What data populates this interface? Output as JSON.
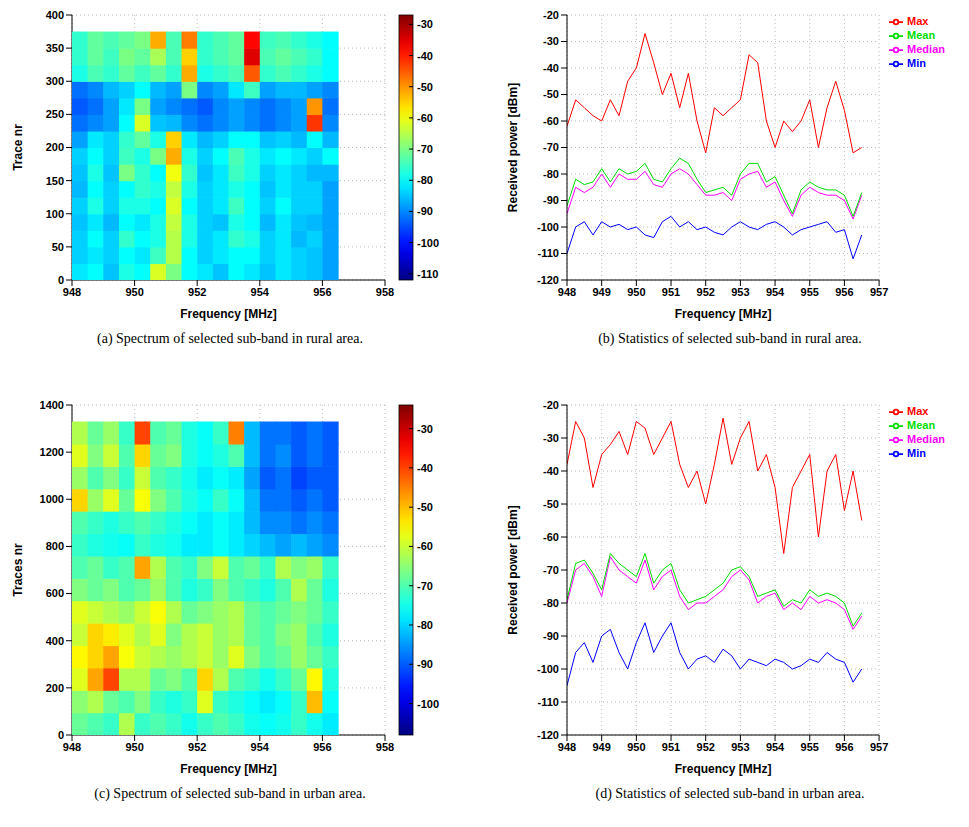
{
  "chart_data": [
    {
      "type": "heatmap",
      "caption": "(a) Spectrum of selected sub-band in rural area.",
      "x_label": "Frequency [MHz]",
      "y_label": "Trace nr",
      "xlim": [
        948,
        958
      ],
      "xticks": [
        948,
        950,
        952,
        954,
        956,
        958
      ],
      "ylim": [
        0,
        400
      ],
      "yticks": [
        0,
        50,
        100,
        150,
        200,
        250,
        300,
        350,
        400
      ],
      "grid": true,
      "x_bins": [
        948,
        948.5,
        949,
        949.5,
        950,
        950.5,
        951,
        951.5,
        952,
        952.5,
        953,
        953.5,
        954,
        954.5,
        955,
        955.5,
        956,
        956.5
      ],
      "y_bins": [
        0,
        25,
        50,
        75,
        100,
        125,
        150,
        175,
        200,
        225,
        250,
        275,
        300,
        325,
        350,
        375
      ],
      "cells": [
        [
          -82,
          -80,
          -85,
          -78,
          -80,
          -62,
          -70,
          -80,
          -82,
          -85,
          -80,
          -82,
          -85,
          -82,
          -84,
          -85,
          -88
        ],
        [
          -84,
          -82,
          -84,
          -80,
          -82,
          -75,
          -65,
          -80,
          -84,
          -82,
          -80,
          -80,
          -84,
          -82,
          -84,
          -85,
          -88
        ],
        [
          -84,
          -80,
          -84,
          -76,
          -80,
          -78,
          -65,
          -78,
          -84,
          -82,
          -76,
          -78,
          -84,
          -82,
          -86,
          -84,
          -88
        ],
        [
          -85,
          -82,
          -86,
          -80,
          -82,
          -78,
          -64,
          -78,
          -84,
          -85,
          -78,
          -80,
          -86,
          -82,
          -85,
          -86,
          -88
        ],
        [
          -84,
          -78,
          -84,
          -78,
          -78,
          -80,
          -62,
          -80,
          -84,
          -82,
          -75,
          -80,
          -84,
          -80,
          -84,
          -84,
          -88
        ],
        [
          -86,
          -80,
          -84,
          -80,
          -76,
          -78,
          -64,
          -78,
          -84,
          -82,
          -78,
          -80,
          -85,
          -82,
          -84,
          -84,
          -88
        ],
        [
          -85,
          -78,
          -85,
          -70,
          -76,
          -80,
          -60,
          -76,
          -85,
          -82,
          -75,
          -78,
          -84,
          -82,
          -84,
          -86,
          -86
        ],
        [
          -84,
          -80,
          -84,
          -75,
          -78,
          -70,
          -52,
          -78,
          -84,
          -80,
          -74,
          -78,
          -82,
          -80,
          -82,
          -84,
          -80
        ],
        [
          -88,
          -82,
          -84,
          -76,
          -72,
          -78,
          -55,
          -82,
          -86,
          -84,
          -80,
          -80,
          -85,
          -84,
          -86,
          -80,
          -86
        ],
        [
          -92,
          -90,
          -88,
          -80,
          -62,
          -85,
          -86,
          -90,
          -92,
          -90,
          -88,
          -90,
          -92,
          -90,
          -88,
          -42,
          -90
        ],
        [
          -94,
          -92,
          -88,
          -82,
          -70,
          -88,
          -90,
          -92,
          -94,
          -90,
          -88,
          -90,
          -92,
          -90,
          -88,
          -50,
          -92
        ],
        [
          -92,
          -90,
          -86,
          -84,
          -80,
          -86,
          -88,
          -70,
          -90,
          -88,
          -82,
          -75,
          -88,
          -86,
          -86,
          -88,
          -90
        ],
        [
          -78,
          -74,
          -76,
          -72,
          -75,
          -72,
          -76,
          -52,
          -78,
          -76,
          -74,
          -45,
          -76,
          -74,
          -76,
          -78,
          -80
        ],
        [
          -76,
          -72,
          -75,
          -70,
          -72,
          -66,
          -74,
          -55,
          -76,
          -74,
          -72,
          -35,
          -74,
          -72,
          -74,
          -76,
          -80
        ],
        [
          -76,
          -72,
          -74,
          -72,
          -70,
          -52,
          -74,
          -48,
          -76,
          -74,
          -72,
          -38,
          -75,
          -74,
          -76,
          -78,
          -80
        ]
      ],
      "colorbar_lim": [
        -112,
        -27
      ],
      "colorbar_ticks": [
        -110,
        -100,
        -90,
        -80,
        -70,
        -60,
        -50,
        -40,
        -30
      ]
    },
    {
      "type": "line",
      "caption": "(b) Statistics of selected sub-band in rural area.",
      "x_label": "Frequency [MHz]",
      "y_label": "Received power [dBm]",
      "x": [
        948,
        948.25,
        948.5,
        948.75,
        949,
        949.25,
        949.5,
        949.75,
        950,
        950.25,
        950.5,
        950.75,
        951,
        951.25,
        951.5,
        951.75,
        952,
        952.25,
        952.5,
        952.75,
        953,
        953.25,
        953.5,
        953.75,
        954,
        954.25,
        954.5,
        954.75,
        955,
        955.25,
        955.5,
        955.75,
        956,
        956.25,
        956.5
      ],
      "series": [
        {
          "name": "Median",
          "color": "#ff00ff",
          "values": [
            -95,
            -85,
            -87,
            -85,
            -80,
            -85,
            -80,
            -82,
            -82,
            -79,
            -84,
            -85,
            -80,
            -78,
            -80,
            -84,
            -88,
            -88,
            -87,
            -90,
            -82,
            -80,
            -79,
            -85,
            -83,
            -90,
            -96,
            -88,
            -85,
            -87,
            -88,
            -88,
            -90,
            -97,
            -88
          ]
        },
        {
          "name": "Max",
          "color": "#ff0000",
          "values": [
            -62,
            -52,
            -55,
            -58,
            -60,
            -52,
            -58,
            -45,
            -40,
            -27,
            -38,
            -50,
            -42,
            -55,
            -42,
            -60,
            -72,
            -55,
            -58,
            -55,
            -52,
            -35,
            -38,
            -60,
            -70,
            -60,
            -64,
            -60,
            -52,
            -70,
            -55,
            -45,
            -56,
            -72,
            -70
          ]
        },
        {
          "name": "Min",
          "color": "#0000ff",
          "values": [
            -110,
            -100,
            -98,
            -103,
            -98,
            -100,
            -99,
            -101,
            -100,
            -103,
            -104,
            -98,
            -96,
            -100,
            -98,
            -101,
            -100,
            -102,
            -103,
            -100,
            -98,
            -100,
            -101,
            -99,
            -98,
            -100,
            -103,
            -101,
            -100,
            -99,
            -98,
            -102,
            -101,
            -112,
            -103
          ]
        },
        {
          "name": "Mean",
          "color": "#00dd00",
          "values": [
            -92,
            -82,
            -84,
            -83,
            -78,
            -83,
            -78,
            -80,
            -79,
            -76,
            -82,
            -83,
            -78,
            -74,
            -76,
            -82,
            -87,
            -86,
            -85,
            -88,
            -80,
            -76,
            -76,
            -83,
            -81,
            -88,
            -95,
            -86,
            -83,
            -85,
            -86,
            -86,
            -88,
            -96,
            -87
          ]
        }
      ],
      "xlim": [
        948,
        957
      ],
      "xticks": [
        948,
        949,
        950,
        951,
        952,
        953,
        954,
        955,
        956,
        957
      ],
      "ylim": [
        -120,
        -20
      ],
      "yticks": [
        -120,
        -110,
        -100,
        -90,
        -80,
        -70,
        -60,
        -50,
        -40,
        -30,
        -20
      ],
      "grid": true,
      "legend": "right"
    },
    {
      "type": "heatmap",
      "caption": "(c) Spectrum of selected sub-band in urban area.",
      "x_label": "Frequency [MHz]",
      "y_label": "Traces nr",
      "xlim": [
        948,
        958
      ],
      "xticks": [
        948,
        950,
        952,
        954,
        956,
        958
      ],
      "ylim": [
        0,
        1400
      ],
      "yticks": [
        0,
        200,
        400,
        600,
        800,
        1000,
        1200,
        1400
      ],
      "grid": true,
      "x_bins": [
        948,
        948.5,
        949,
        949.5,
        950,
        950.5,
        951,
        951.5,
        952,
        952.5,
        953,
        953.5,
        954,
        954.5,
        955,
        955.5,
        956,
        956.5
      ],
      "y_bins": [
        0,
        95,
        190,
        285,
        380,
        475,
        570,
        665,
        760,
        855,
        950,
        1045,
        1140,
        1235,
        1330
      ],
      "cells": [
        [
          -68,
          -70,
          -72,
          -62,
          -72,
          -70,
          -72,
          -75,
          -72,
          -70,
          -72,
          -75,
          -76,
          -75,
          -72,
          -75,
          -78
        ],
        [
          -65,
          -62,
          -68,
          -70,
          -66,
          -72,
          -74,
          -72,
          -58,
          -72,
          -74,
          -76,
          -78,
          -76,
          -72,
          -50,
          -76
        ],
        [
          -58,
          -48,
          -40,
          -62,
          -62,
          -68,
          -66,
          -70,
          -52,
          -62,
          -70,
          -72,
          -75,
          -72,
          -68,
          -55,
          -74
        ],
        [
          -55,
          -52,
          -48,
          -56,
          -60,
          -62,
          -64,
          -62,
          -60,
          -64,
          -58,
          -66,
          -70,
          -68,
          -64,
          -68,
          -72
        ],
        [
          -60,
          -52,
          -54,
          -58,
          -62,
          -58,
          -66,
          -62,
          -60,
          -64,
          -62,
          -68,
          -70,
          -66,
          -64,
          -70,
          -74
        ],
        [
          -58,
          -60,
          -62,
          -64,
          -60,
          -56,
          -62,
          -68,
          -66,
          -64,
          -62,
          -68,
          -70,
          -68,
          -66,
          -68,
          -72
        ],
        [
          -66,
          -68,
          -66,
          -70,
          -68,
          -64,
          -70,
          -74,
          -72,
          -66,
          -70,
          -72,
          -74,
          -70,
          -62,
          -68,
          -74
        ],
        [
          -70,
          -68,
          -72,
          -70,
          -48,
          -62,
          -70,
          -72,
          -66,
          -60,
          -70,
          -68,
          -72,
          -62,
          -66,
          -64,
          -72
        ],
        [
          -72,
          -74,
          -75,
          -76,
          -72,
          -74,
          -75,
          -78,
          -78,
          -76,
          -78,
          -80,
          -82,
          -84,
          -82,
          -84,
          -86
        ],
        [
          -70,
          -72,
          -74,
          -72,
          -70,
          -72,
          -74,
          -76,
          -78,
          -76,
          -78,
          -82,
          -86,
          -86,
          -88,
          -86,
          -88
        ],
        [
          -52,
          -64,
          -58,
          -68,
          -56,
          -66,
          -70,
          -74,
          -76,
          -72,
          -76,
          -82,
          -88,
          -88,
          -90,
          -88,
          -90
        ],
        [
          -64,
          -70,
          -66,
          -72,
          -60,
          -70,
          -72,
          -75,
          -78,
          -76,
          -78,
          -84,
          -90,
          -88,
          -92,
          -90,
          -90
        ],
        [
          -58,
          -66,
          -60,
          -70,
          -52,
          -68,
          -66,
          -74,
          -76,
          -74,
          -70,
          -82,
          -88,
          -86,
          -90,
          -88,
          -90
        ],
        [
          -62,
          -68,
          -64,
          -72,
          -40,
          -70,
          -68,
          -74,
          -76,
          -72,
          -45,
          -82,
          -88,
          -88,
          -90,
          -88,
          -90
        ]
      ],
      "colorbar_lim": [
        -108,
        -24
      ],
      "colorbar_ticks": [
        -100,
        -90,
        -80,
        -70,
        -60,
        -50,
        -40,
        -30
      ]
    },
    {
      "type": "line",
      "caption": "(d) Statistics of selected sub-band in urban area.",
      "x_label": "Frequency [MHz]",
      "y_label": "Received power [dBm]",
      "x": [
        948,
        948.25,
        948.5,
        948.75,
        949,
        949.25,
        949.5,
        949.75,
        950,
        950.25,
        950.5,
        950.75,
        951,
        951.25,
        951.5,
        951.75,
        952,
        952.25,
        952.5,
        952.75,
        953,
        953.25,
        953.5,
        953.75,
        954,
        954.25,
        954.5,
        954.75,
        955,
        955.25,
        955.5,
        955.75,
        956,
        956.25,
        956.5
      ],
      "series": [
        {
          "name": "Median",
          "color": "#ff00ff",
          "values": [
            -80,
            -70,
            -68,
            -72,
            -78,
            -66,
            -70,
            -72,
            -74,
            -67,
            -76,
            -72,
            -70,
            -78,
            -82,
            -80,
            -80,
            -78,
            -76,
            -72,
            -70,
            -73,
            -80,
            -78,
            -77,
            -82,
            -80,
            -82,
            -78,
            -80,
            -79,
            -80,
            -82,
            -88,
            -84
          ]
        },
        {
          "name": "Max",
          "color": "#ff0000",
          "values": [
            -38,
            -25,
            -30,
            -45,
            -35,
            -32,
            -28,
            -35,
            -25,
            -27,
            -35,
            -30,
            -25,
            -38,
            -45,
            -40,
            -50,
            -38,
            -24,
            -38,
            -30,
            -25,
            -40,
            -35,
            -45,
            -65,
            -45,
            -40,
            -35,
            -60,
            -40,
            -35,
            -52,
            -40,
            -55
          ]
        },
        {
          "name": "Min",
          "color": "#0000ff",
          "values": [
            -105,
            -95,
            -92,
            -98,
            -90,
            -88,
            -95,
            -100,
            -92,
            -86,
            -95,
            -90,
            -86,
            -95,
            -100,
            -97,
            -96,
            -98,
            -94,
            -96,
            -100,
            -97,
            -98,
            -99,
            -97,
            -98,
            -100,
            -99,
            -97,
            -98,
            -95,
            -97,
            -98,
            -104,
            -100
          ]
        },
        {
          "name": "Mean",
          "color": "#00dd00",
          "values": [
            -79,
            -68,
            -67,
            -71,
            -76,
            -65,
            -68,
            -70,
            -72,
            -65,
            -74,
            -70,
            -68,
            -76,
            -80,
            -79,
            -78,
            -76,
            -74,
            -70,
            -69,
            -72,
            -78,
            -77,
            -76,
            -81,
            -79,
            -80,
            -76,
            -78,
            -77,
            -78,
            -80,
            -87,
            -83
          ]
        }
      ],
      "xlim": [
        948,
        957
      ],
      "xticks": [
        948,
        949,
        950,
        951,
        952,
        953,
        954,
        955,
        956,
        957
      ],
      "ylim": [
        -120,
        -20
      ],
      "yticks": [
        -120,
        -110,
        -100,
        -90,
        -80,
        -70,
        -60,
        -50,
        -40,
        -30,
        -20
      ],
      "grid": true,
      "legend": "right"
    }
  ]
}
